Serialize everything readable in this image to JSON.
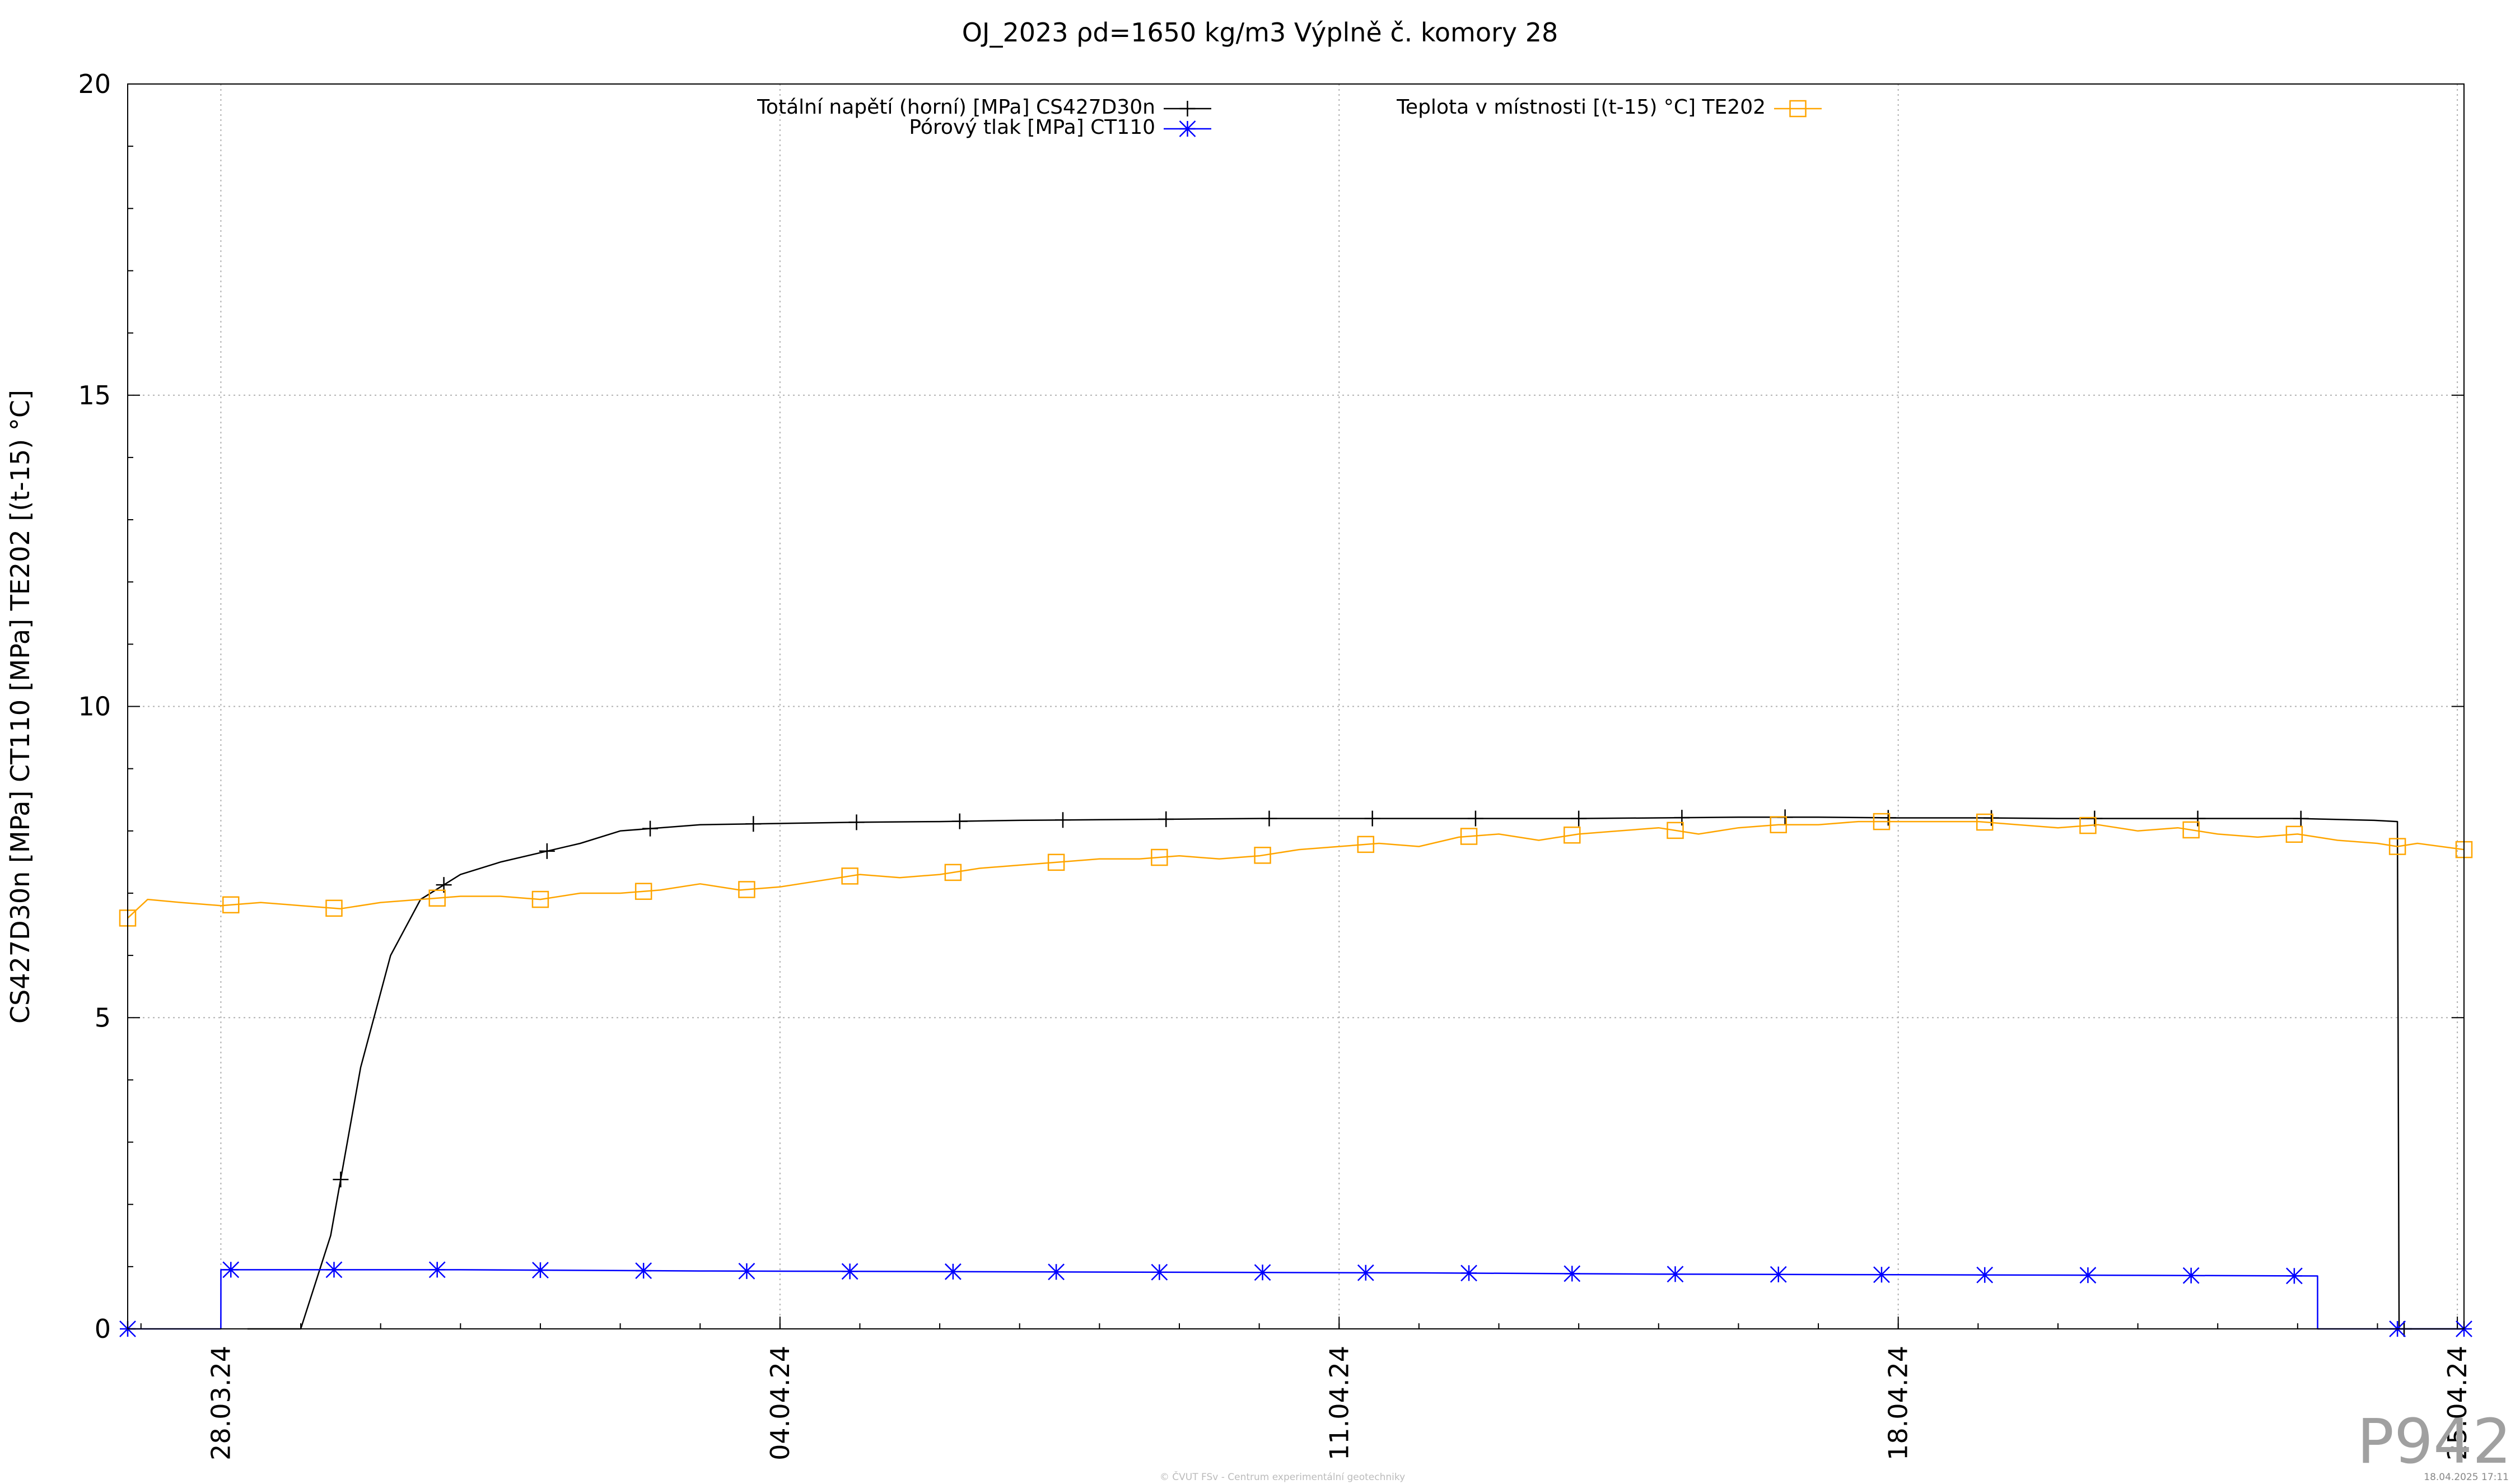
{
  "chart_data": {
    "type": "line",
    "title": "OJ_2023 ρd=1650 kg/m3 Výplně č. komory 28",
    "ylabel": "CS427D30n [MPa] CT110 [MPa] TE202 [(t-15) °C]",
    "xlabel": "",
    "ylim": [
      0,
      20
    ],
    "yticks": [
      "0",
      "5",
      "10",
      "15",
      "20"
    ],
    "xlim": [
      "2024-03-26T20:00",
      "2024-04-25T02:00"
    ],
    "xticks": [
      {
        "date": "2024-03-28",
        "label": "28.03.24"
      },
      {
        "date": "2024-04-04",
        "label": "04.04.24"
      },
      {
        "date": "2024-04-11",
        "label": "11.04.24"
      },
      {
        "date": "2024-04-18",
        "label": "18.04.24"
      },
      {
        "date": "2024-04-25",
        "label": "25.04.24"
      }
    ],
    "grid": true,
    "legend_position": "top",
    "series": [
      {
        "name": "Totální napětí (horní) [MPa] CS427D30n",
        "color": "#000000",
        "marker": "plus",
        "x": [
          "2024-03-28T08:00",
          "2024-03-28T14:00",
          "2024-03-29T00:00",
          "2024-03-29T09:00",
          "2024-03-29T18:00",
          "2024-03-30T03:00",
          "2024-03-30T12:00",
          "2024-03-31T00:00",
          "2024-03-31T12:00",
          "2024-04-01T00:00",
          "2024-04-01T12:00",
          "2024-04-02T00:00",
          "2024-04-02T12:00",
          "2024-04-03T00:00",
          "2024-04-04T00:00",
          "2024-04-05T00:00",
          "2024-04-06T00:00",
          "2024-04-07T00:00",
          "2024-04-08T00:00",
          "2024-04-09T00:00",
          "2024-04-10T00:00",
          "2024-04-11T00:00",
          "2024-04-12T00:00",
          "2024-04-13T00:00",
          "2024-04-14T00:00",
          "2024-04-15T00:00",
          "2024-04-16T00:00",
          "2024-04-17T00:00",
          "2024-04-18T00:00",
          "2024-04-19T00:00",
          "2024-04-20T00:00",
          "2024-04-21T00:00",
          "2024-04-22T00:00",
          "2024-04-23T00:00",
          "2024-04-23T23:00",
          "2024-04-24T06:00",
          "2024-04-24T06:30",
          "2024-04-25T02:00"
        ],
        "y": [
          0,
          0,
          0,
          1.5,
          4.2,
          6.0,
          6.9,
          7.3,
          7.5,
          7.65,
          7.8,
          8.0,
          8.05,
          8.1,
          8.12,
          8.14,
          8.15,
          8.17,
          8.18,
          8.19,
          8.2,
          8.2,
          8.2,
          8.2,
          8.2,
          8.21,
          8.22,
          8.22,
          8.21,
          8.21,
          8.2,
          8.2,
          8.2,
          8.2,
          8.17,
          8.15,
          0,
          0
        ],
        "marker_x": [
          "2024-03-29T12:00",
          "2024-03-30T19:00",
          "2024-04-01T02:00",
          "2024-04-02T09:00",
          "2024-04-03T16:00",
          "2024-04-04T23:00",
          "2024-04-06T06:00",
          "2024-04-07T13:00",
          "2024-04-08T20:00",
          "2024-04-10T03:00",
          "2024-04-11T10:00",
          "2024-04-12T17:00",
          "2024-04-14T00:00",
          "2024-04-15T07:00",
          "2024-04-16T14:00",
          "2024-04-17T21:00",
          "2024-04-19T04:00",
          "2024-04-20T11:00",
          "2024-04-21T18:00",
          "2024-04-23T01:00",
          "2024-04-24T08:00"
        ]
      },
      {
        "name": "Pórový tlak [MPa] CT110",
        "color": "#0000ff",
        "marker": "star",
        "x": [
          "2024-03-26T20:00",
          "2024-03-28T00:00",
          "2024-03-28T00:01",
          "2024-03-31T00:00",
          "2024-04-03T00:00",
          "2024-04-06T00:00",
          "2024-04-09T00:00",
          "2024-04-12T00:00",
          "2024-04-15T00:00",
          "2024-04-18T00:00",
          "2024-04-21T00:00",
          "2024-04-23T06:00",
          "2024-04-23T06:01",
          "2024-04-25T02:00"
        ],
        "y": [
          0,
          0,
          0.95,
          0.95,
          0.93,
          0.92,
          0.91,
          0.9,
          0.88,
          0.87,
          0.86,
          0.85,
          0,
          0
        ],
        "marker_x": [
          "2024-03-26T20:00",
          "2024-03-28T03:00",
          "2024-03-29T10:00",
          "2024-03-30T17:00",
          "2024-04-01T00:00",
          "2024-04-02T07:00",
          "2024-04-03T14:00",
          "2024-04-04T21:00",
          "2024-04-06T04:00",
          "2024-04-07T11:00",
          "2024-04-08T18:00",
          "2024-04-10T01:00",
          "2024-04-11T08:00",
          "2024-04-12T15:00",
          "2024-04-13T22:00",
          "2024-04-15T05:00",
          "2024-04-16T12:00",
          "2024-04-17T19:00",
          "2024-04-19T02:00",
          "2024-04-20T09:00",
          "2024-04-21T16:00",
          "2024-04-22T23:00",
          "2024-04-24T06:00",
          "2024-04-25T02:00"
        ]
      },
      {
        "name": "Teplota v místnosti [(t-15) °C] TE202",
        "color": "#ffa500",
        "marker": "square",
        "x": [
          "2024-03-26T20:00",
          "2024-03-27T02:00",
          "2024-03-27T12:00",
          "2024-03-28T00:00",
          "2024-03-28T12:00",
          "2024-03-29T00:00",
          "2024-03-29T12:00",
          "2024-03-30T00:00",
          "2024-03-30T12:00",
          "2024-03-31T00:00",
          "2024-03-31T12:00",
          "2024-04-01T00:00",
          "2024-04-01T12:00",
          "2024-04-02T00:00",
          "2024-04-02T12:00",
          "2024-04-03T00:00",
          "2024-04-03T12:00",
          "2024-04-04T00:00",
          "2024-04-04T12:00",
          "2024-04-05T00:00",
          "2024-04-05T12:00",
          "2024-04-06T00:00",
          "2024-04-06T12:00",
          "2024-04-07T00:00",
          "2024-04-07T12:00",
          "2024-04-08T00:00",
          "2024-04-08T12:00",
          "2024-04-09T00:00",
          "2024-04-09T12:00",
          "2024-04-10T00:00",
          "2024-04-10T12:00",
          "2024-04-11T00:00",
          "2024-04-11T12:00",
          "2024-04-12T00:00",
          "2024-04-12T12:00",
          "2024-04-13T00:00",
          "2024-04-13T12:00",
          "2024-04-14T00:00",
          "2024-04-14T12:00",
          "2024-04-15T00:00",
          "2024-04-15T12:00",
          "2024-04-16T00:00",
          "2024-04-16T12:00",
          "2024-04-17T00:00",
          "2024-04-17T12:00",
          "2024-04-18T00:00",
          "2024-04-18T12:00",
          "2024-04-19T00:00",
          "2024-04-19T12:00",
          "2024-04-20T00:00",
          "2024-04-20T12:00",
          "2024-04-21T00:00",
          "2024-04-21T12:00",
          "2024-04-22T00:00",
          "2024-04-22T12:00",
          "2024-04-23T00:00",
          "2024-04-23T12:00",
          "2024-04-24T00:00",
          "2024-04-24T06:00",
          "2024-04-24T12:00",
          "2024-04-25T02:00"
        ],
        "y": [
          6.6,
          6.9,
          6.85,
          6.8,
          6.85,
          6.8,
          6.75,
          6.85,
          6.9,
          6.95,
          6.95,
          6.9,
          7.0,
          7.0,
          7.05,
          7.15,
          7.05,
          7.1,
          7.2,
          7.3,
          7.25,
          7.3,
          7.4,
          7.45,
          7.5,
          7.55,
          7.55,
          7.6,
          7.55,
          7.6,
          7.7,
          7.75,
          7.8,
          7.75,
          7.9,
          7.95,
          7.85,
          7.95,
          8.0,
          8.05,
          7.95,
          8.05,
          8.1,
          8.1,
          8.15,
          8.15,
          8.15,
          8.15,
          8.1,
          8.05,
          8.1,
          8.0,
          8.05,
          7.95,
          7.9,
          7.95,
          7.85,
          7.8,
          7.75,
          7.8,
          7.7
        ],
        "marker_x": [
          "2024-03-26T20:00",
          "2024-03-28T03:00",
          "2024-03-29T10:00",
          "2024-03-30T17:00",
          "2024-04-01T00:00",
          "2024-04-02T07:00",
          "2024-04-03T14:00",
          "2024-04-04T21:00",
          "2024-04-06T04:00",
          "2024-04-07T11:00",
          "2024-04-08T18:00",
          "2024-04-10T01:00",
          "2024-04-11T08:00",
          "2024-04-12T15:00",
          "2024-04-13T22:00",
          "2024-04-15T05:00",
          "2024-04-16T12:00",
          "2024-04-17T19:00",
          "2024-04-19T02:00",
          "2024-04-20T09:00",
          "2024-04-21T16:00",
          "2024-04-22T23:00",
          "2024-04-24T06:00",
          "2024-04-25T02:00"
        ]
      }
    ],
    "footer": {
      "center": "© ČVUT FSv - Centrum experimentální geotechniky",
      "right": "18.04.2025 17:11",
      "code": "P942"
    }
  }
}
